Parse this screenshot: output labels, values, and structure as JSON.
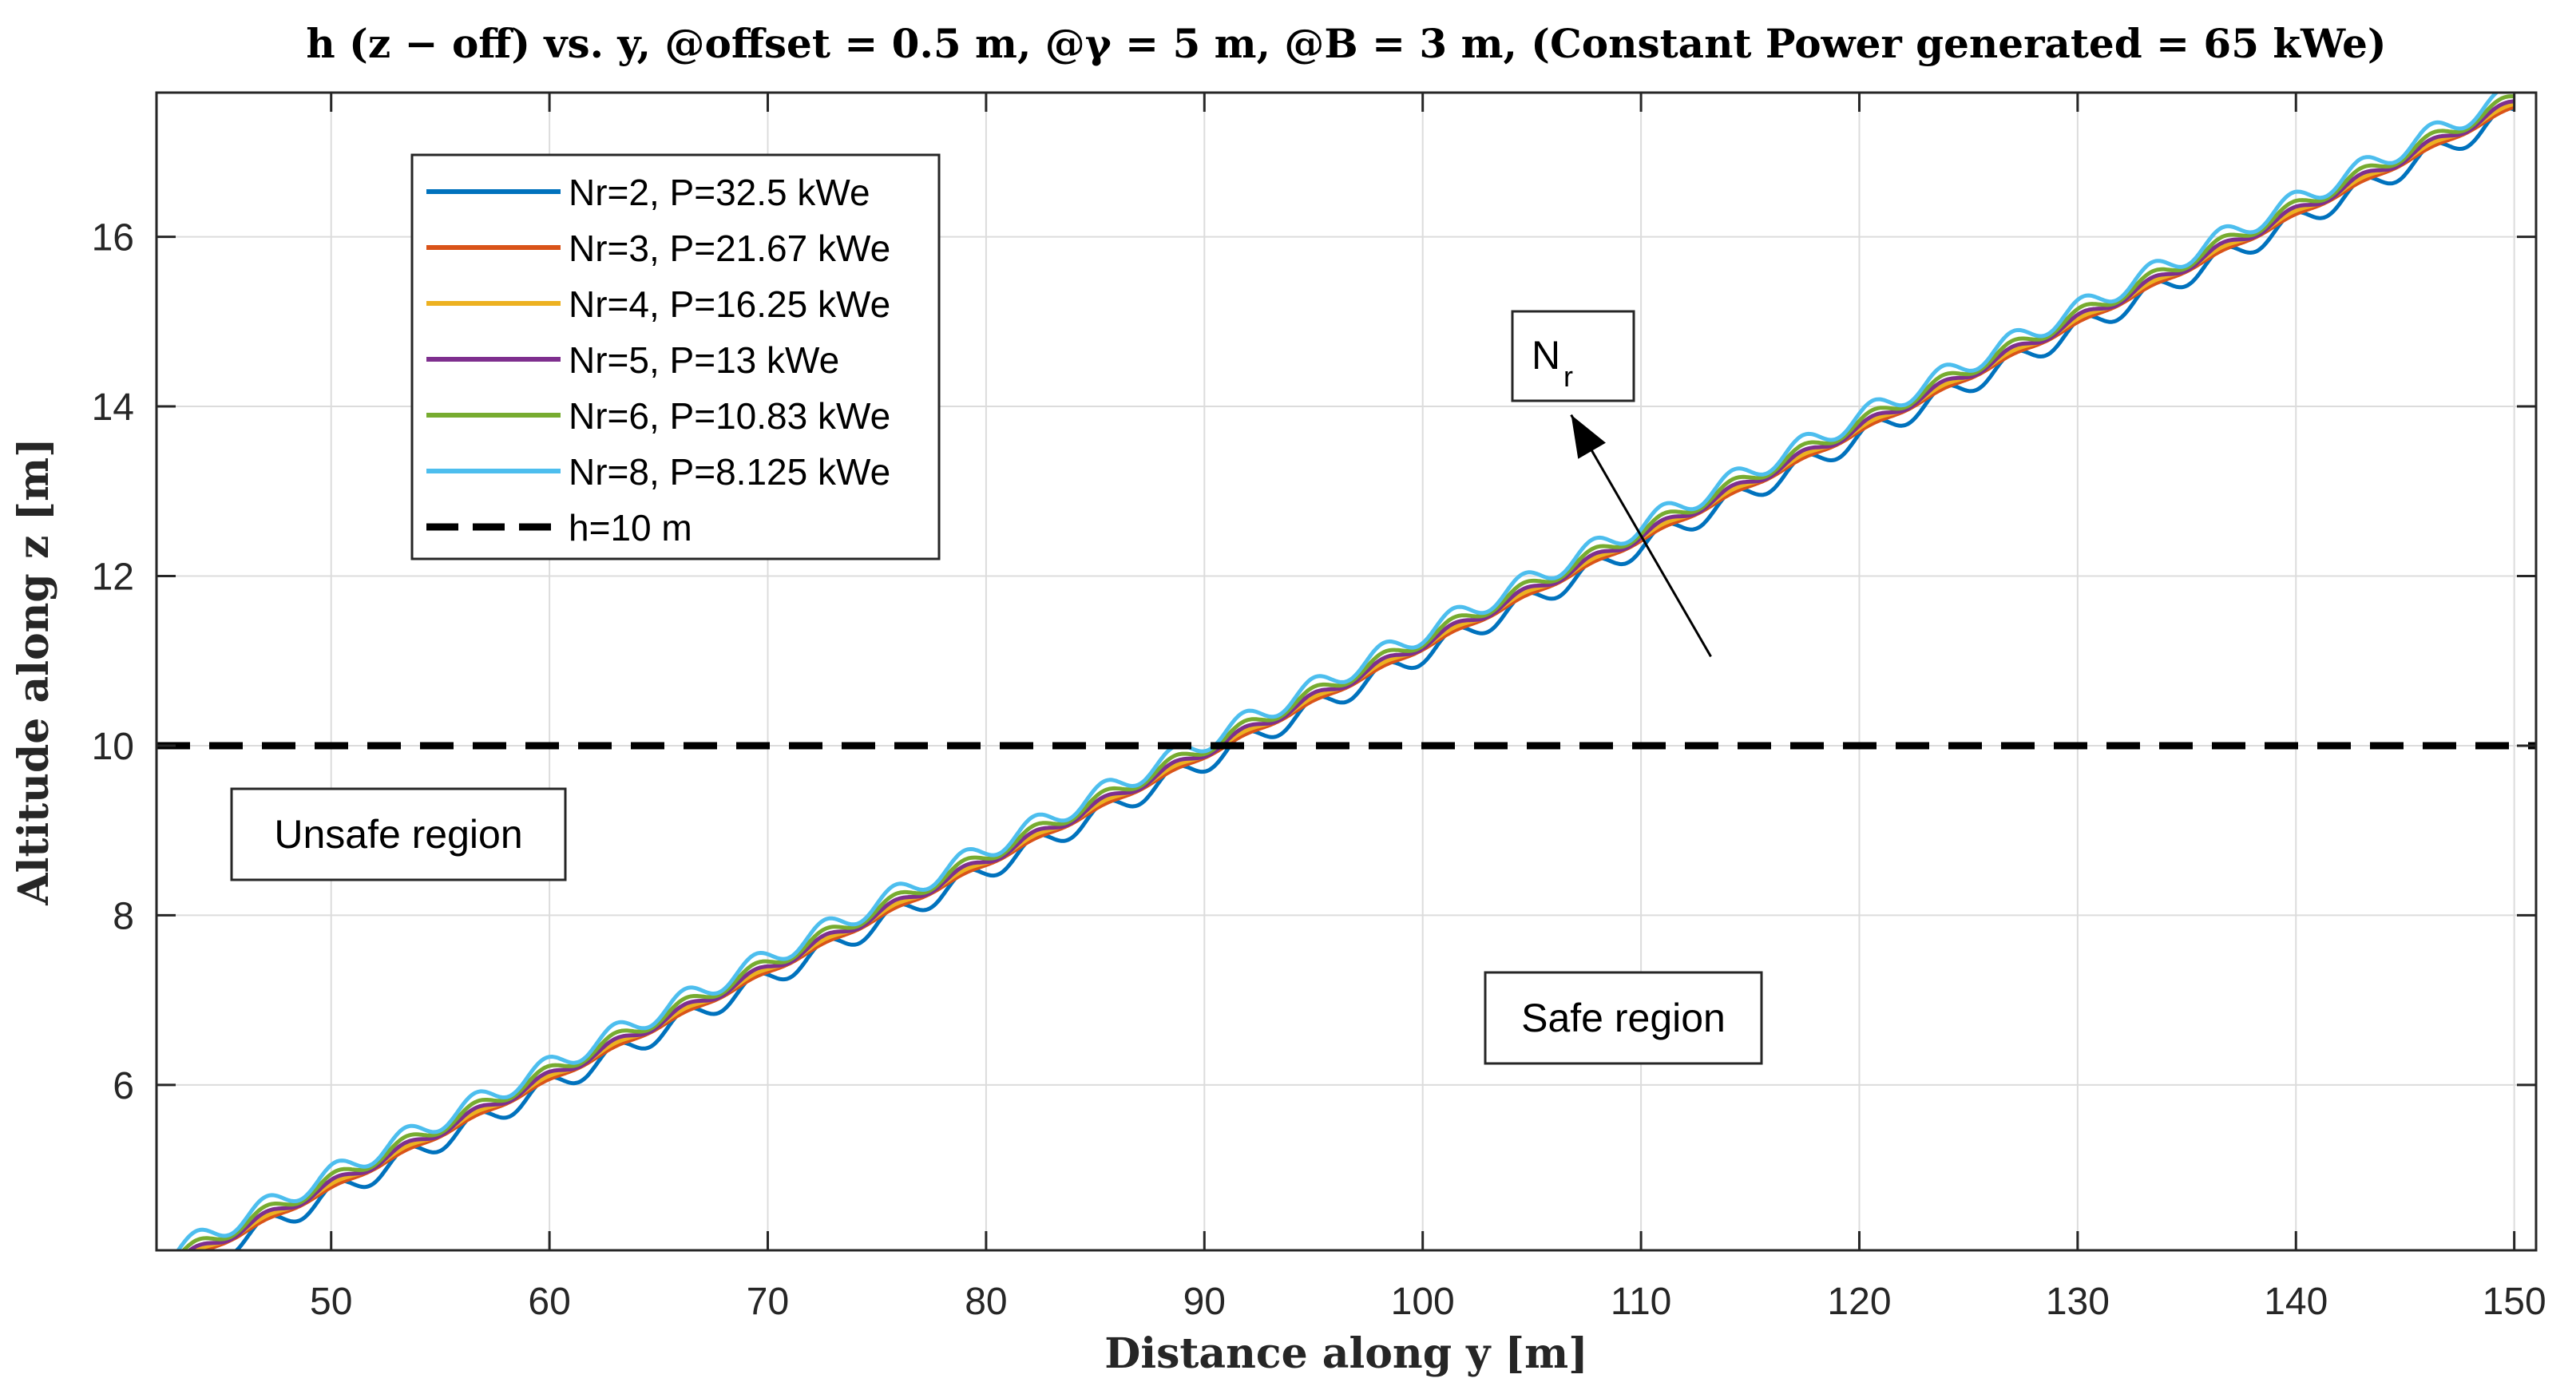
{
  "chart_data": {
    "type": "line",
    "title": "h (z − off) vs. y,  @offset = 0.5 m,  @γ = 5 m,  @B = 3 m,  (Constant Power generated  = 65 kWe)",
    "xlabel": "Distance along y [m]",
    "ylabel": "Altitude along z [m]",
    "xlim": [
      42,
      151
    ],
    "ylim": [
      4.05,
      17.7
    ],
    "xticks": [
      50,
      60,
      70,
      80,
      90,
      100,
      110,
      120,
      130,
      140,
      150
    ],
    "yticks": [
      6,
      8,
      10,
      12,
      14,
      16
    ],
    "grid": true,
    "legend_position": "top-left",
    "trend": {
      "slope": 0.1275,
      "intercept": -1.55,
      "y_start": 43.0,
      "y_end": 150.0,
      "wave_period_m": 3.2
    },
    "series": [
      {
        "name": "Nr=2, P=32.5 kWe",
        "color": "#0072BD",
        "style": "solid",
        "offset": -0.12,
        "amplitude": 0.12
      },
      {
        "name": "Nr=3, P=21.67 kWe",
        "color": "#D95319",
        "style": "solid",
        "offset": -0.05,
        "amplitude": 0.02
      },
      {
        "name": "Nr=4, P=16.25 kWe",
        "color": "#EDB120",
        "style": "solid",
        "offset": -0.02,
        "amplitude": 0.03
      },
      {
        "name": "Nr=5, P=13 kWe",
        "color": "#7E2F8E",
        "style": "solid",
        "offset": 0.0,
        "amplitude": 0.06
      },
      {
        "name": "Nr=6, P=10.83 kWe",
        "color": "#77AC30",
        "style": "solid",
        "offset": 0.05,
        "amplitude": 0.08
      },
      {
        "name": "Nr=8, P=8.125 kWe",
        "color": "#4DBEEE",
        "style": "solid",
        "offset": 0.12,
        "amplitude": 0.12
      },
      {
        "name": "h=10 m",
        "color": "#000000",
        "style": "dashed",
        "constant": 10
      }
    ],
    "annotations": {
      "unsafe_label": "Unsafe region",
      "safe_label": "Safe region",
      "nr_main": "N",
      "nr_sub": "r",
      "arrow_from": [
        113.2,
        11.05
      ],
      "arrow_to": [
        106.8,
        13.9
      ]
    }
  }
}
